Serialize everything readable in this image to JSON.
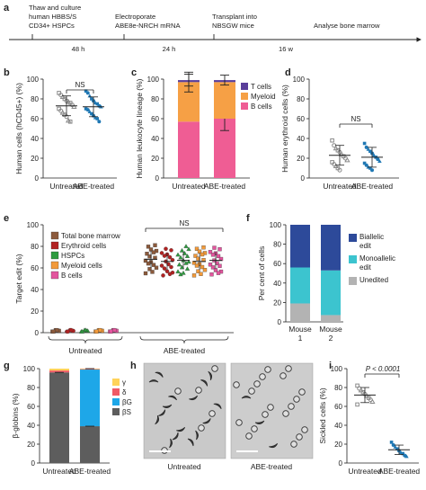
{
  "panel_a": {
    "letter": "a",
    "steps": [
      "Thaw and culture",
      "human HBBS/S",
      "CD34+ HSPCs",
      "Electroporate",
      "ABE8e-NRCH mRNA",
      "Transplant into",
      "NBSGW mice",
      "Analyse bone marrow"
    ],
    "intervals": [
      "48 h",
      "24 h",
      "16 w"
    ]
  },
  "chart_data": [
    {
      "panel": "b",
      "type": "scatter",
      "ylabel": "Human cells (hCD45+) (%)",
      "ylim": [
        0,
        100
      ],
      "yticks": [
        0,
        20,
        40,
        60,
        80,
        100
      ],
      "categories": [
        "Untreated",
        "ABE-treated"
      ],
      "annotation": "NS",
      "series": [
        {
          "mean": 73,
          "sd": 10,
          "values": [
            86,
            84,
            82,
            80,
            78,
            77,
            76,
            74,
            72,
            70,
            68,
            66,
            64,
            62,
            58,
            57
          ]
        },
        {
          "mean": 72,
          "sd": 10,
          "values": [
            88,
            86,
            83,
            80,
            78,
            76,
            75,
            73,
            72,
            70,
            69,
            67,
            65,
            63,
            61,
            60,
            57
          ]
        }
      ]
    },
    {
      "panel": "c",
      "type": "bar",
      "stacked": true,
      "ylabel": "Human leukocyte lineage (%)",
      "ylim": [
        0,
        100
      ],
      "yticks": [
        0,
        20,
        40,
        60,
        80,
        100
      ],
      "categories": [
        "Untreated",
        "ABE-treated"
      ],
      "series": [
        {
          "name": "B cells",
          "values": [
            57,
            60
          ],
          "err": [
            0,
            12
          ]
        },
        {
          "name": "Myeloid",
          "values": [
            40,
            37
          ],
          "err": [
            10,
            0
          ]
        },
        {
          "name": "T cells",
          "values": [
            2,
            2
          ],
          "err": [
            6,
            5
          ]
        }
      ]
    },
    {
      "panel": "d",
      "type": "scatter",
      "ylabel": "Human erythroid cells (%)",
      "ylim": [
        0,
        100
      ],
      "yticks": [
        0,
        20,
        40,
        60,
        80,
        100
      ],
      "categories": [
        "Untreated",
        "ABE-treated"
      ],
      "annotation": "NS",
      "series": [
        {
          "mean": 23,
          "sd": 10,
          "values": [
            38,
            33,
            30,
            28,
            26,
            24,
            22,
            20,
            18,
            16,
            14,
            12,
            10,
            8
          ]
        },
        {
          "mean": 21,
          "sd": 10,
          "values": [
            35,
            31,
            29,
            27,
            25,
            23,
            21,
            19,
            17,
            15,
            13,
            11,
            10,
            8
          ]
        }
      ]
    },
    {
      "panel": "e",
      "type": "scatter",
      "ylabel": "Target edit (%)",
      "ylim": [
        0,
        100
      ],
      "yticks": [
        0,
        20,
        40,
        60,
        80,
        100
      ],
      "categories": [
        "Untreated",
        "ABE-treated"
      ],
      "annotation": "NS",
      "series": [
        {
          "name": "Total bone marrow",
          "color": "#8c5a3c",
          "marker": "square",
          "untreated": 1,
          "treated": 68
        },
        {
          "name": "Erythroid cells",
          "color": "#b22222",
          "marker": "circle",
          "untreated": 1,
          "treated": 66
        },
        {
          "name": "HSPCs",
          "color": "#2e9b3f",
          "marker": "triangle",
          "untreated": 1,
          "treated": 67
        },
        {
          "name": "Myeloid cells",
          "color": "#f29a3a",
          "marker": "square",
          "untreated": 1,
          "treated": 66
        },
        {
          "name": "B cells",
          "color": "#e3559e",
          "marker": "square",
          "untreated": 1,
          "treated": 67
        }
      ]
    },
    {
      "panel": "f",
      "type": "bar",
      "stacked": true,
      "ylabel": "Per cent of cells",
      "ylim": [
        0,
        100
      ],
      "yticks": [
        0,
        20,
        40,
        60,
        80,
        100
      ],
      "categories": [
        "Mouse 1",
        "Mouse 2"
      ],
      "series": [
        {
          "name": "Unedited",
          "values": [
            19,
            7
          ]
        },
        {
          "name": "Monoallelic edit",
          "values": [
            37,
            46
          ]
        },
        {
          "name": "Biallelic edit",
          "values": [
            44,
            47
          ]
        }
      ]
    },
    {
      "panel": "g",
      "type": "bar",
      "stacked": true,
      "ylabel": "β-globins (%)",
      "ylim": [
        0,
        100
      ],
      "yticks": [
        0,
        20,
        40,
        60,
        80,
        100
      ],
      "categories": [
        "Untreated",
        "ABE-treated"
      ],
      "series": [
        {
          "name": "βS",
          "values": [
            96,
            39
          ]
        },
        {
          "name": "βG",
          "values": [
            0,
            60
          ]
        },
        {
          "name": "δ",
          "values": [
            2,
            0.5
          ]
        },
        {
          "name": "γ",
          "values": [
            2,
            0.5
          ]
        }
      ]
    },
    {
      "panel": "i",
      "type": "scatter",
      "ylabel": "Sickled cells (%)",
      "ylim": [
        0,
        100
      ],
      "yticks": [
        0,
        20,
        40,
        60,
        80,
        100
      ],
      "categories": [
        "Untreated",
        "ABE-treated"
      ],
      "annotation": "P < 0.0001",
      "series": [
        {
          "mean": 72,
          "sd": 8,
          "values": [
            82,
            79,
            77,
            75,
            73,
            71,
            69,
            67,
            65,
            62
          ]
        },
        {
          "mean": 14,
          "sd": 5,
          "values": [
            22,
            19,
            17,
            15,
            13,
            11,
            10,
            8,
            7
          ]
        }
      ]
    }
  ],
  "panel_h": {
    "letter": "h",
    "labels": [
      "Untreated",
      "ABE-treated"
    ]
  },
  "colors": {
    "untreated_marker": "#8a8a8a",
    "treated_marker": "#1f78b4",
    "b_cells": "#ef5d94",
    "myeloid": "#f6a045",
    "t_cells": "#5a3e9a",
    "unedited": "#b3b3b3",
    "monoallelic": "#3cc4cf",
    "biallelic": "#2d4a9a",
    "beta_s": "#5d5d5d",
    "beta_g": "#1ea7e8",
    "delta": "#f05a66",
    "gamma": "#ffd35a"
  }
}
